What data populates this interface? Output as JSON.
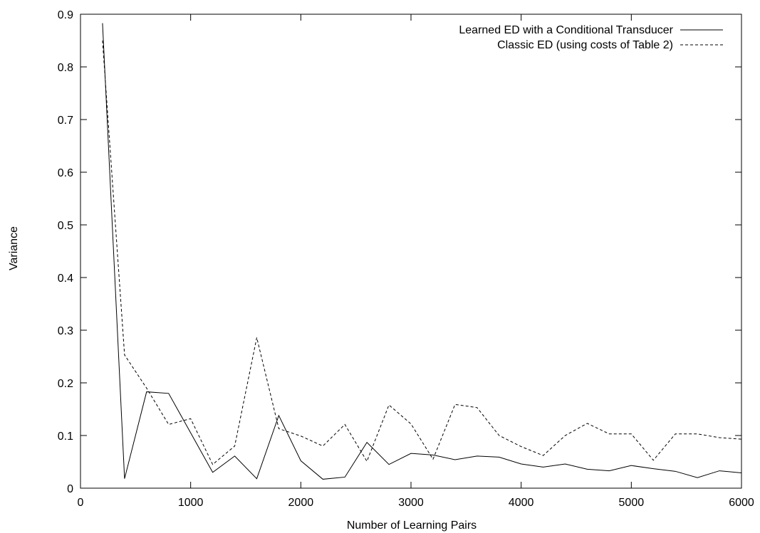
{
  "chart_data": {
    "type": "line",
    "xlabel": "Number of Learning Pairs",
    "ylabel": "Variance",
    "xlim": [
      0,
      6000
    ],
    "ylim": [
      0,
      0.9
    ],
    "xticks": [
      0,
      1000,
      2000,
      3000,
      4000,
      5000,
      6000
    ],
    "yticks": [
      0,
      0.1,
      0.2,
      0.3,
      0.4,
      0.5,
      0.6,
      0.7,
      0.8,
      0.9
    ],
    "xtick_labels": [
      "0",
      "1000",
      "2000",
      "3000",
      "4000",
      "5000",
      "6000"
    ],
    "ytick_labels": [
      "0",
      "0.1",
      "0.2",
      "0.3",
      "0.4",
      "0.5",
      "0.6",
      "0.7",
      "0.8",
      "0.9"
    ],
    "grid": false,
    "legend_position": "top-right",
    "x": [
      200,
      400,
      600,
      800,
      1000,
      1200,
      1400,
      1600,
      1800,
      2000,
      2200,
      2400,
      2600,
      2800,
      3000,
      3200,
      3400,
      3600,
      3800,
      4000,
      4200,
      4400,
      4600,
      4800,
      5000,
      5200,
      5400,
      5600,
      5800,
      6000
    ],
    "series": [
      {
        "name": "Learned ED with a Conditional Transducer",
        "style": "solid",
        "values": [
          0.883,
          0.018,
          0.183,
          0.18,
          0.105,
          0.03,
          0.061,
          0.018,
          0.138,
          0.052,
          0.017,
          0.021,
          0.087,
          0.045,
          0.066,
          0.063,
          0.054,
          0.061,
          0.059,
          0.046,
          0.04,
          0.046,
          0.036,
          0.033,
          0.043,
          0.037,
          0.032,
          0.02,
          0.033,
          0.029
        ]
      },
      {
        "name": "Classic ED (using costs of Table 2)",
        "style": "dashed",
        "values": [
          0.85,
          0.253,
          0.19,
          0.121,
          0.132,
          0.045,
          0.08,
          0.286,
          0.113,
          0.099,
          0.08,
          0.121,
          0.051,
          0.158,
          0.122,
          0.055,
          0.159,
          0.153,
          0.1,
          0.079,
          0.062,
          0.1,
          0.123,
          0.103,
          0.103,
          0.053,
          0.103,
          0.103,
          0.096,
          0.093
        ]
      }
    ]
  }
}
